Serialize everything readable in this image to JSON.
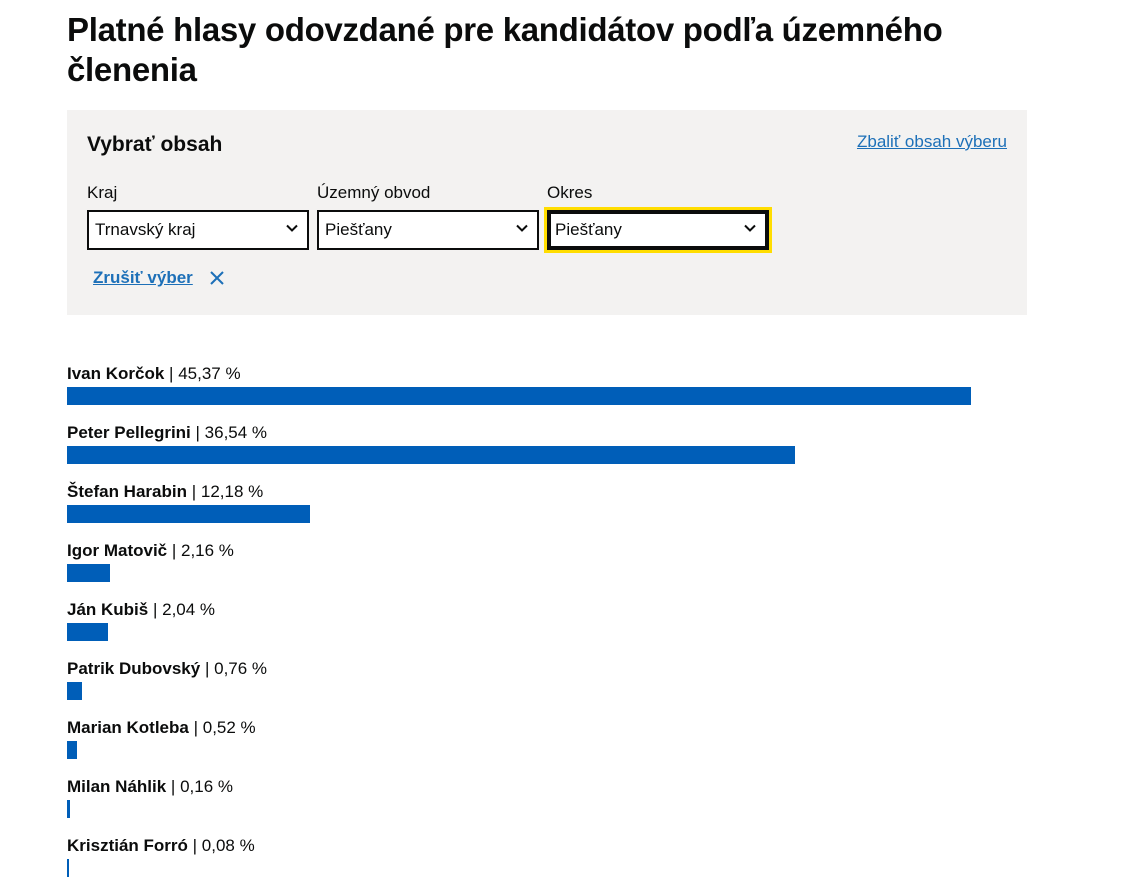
{
  "page": {
    "title": "Platné hlasy odovzdané pre kandidátov podľa územného členenia"
  },
  "filter": {
    "heading": "Vybrať obsah",
    "collapse_label": "Zbaliť obsah výberu",
    "fields": [
      {
        "label": "Kraj",
        "value": "Trnavský kraj"
      },
      {
        "label": "Územný obvod",
        "value": "Piešťany"
      },
      {
        "label": "Okres",
        "value": "Piešťany"
      }
    ],
    "reset_label": "Zrušiť výber"
  },
  "colors": {
    "bar": "#005eb8",
    "link": "#1d70b8",
    "focus": "#ffdd00",
    "panel_bg": "#f3f2f1"
  },
  "icons": {
    "dropdown": "chevron-down-icon",
    "reset": "close-icon"
  },
  "scale_max_percent": 48.2,
  "results": [
    {
      "name": "Ivan Korčok",
      "percent_label": "45,37 %",
      "value": 45.37
    },
    {
      "name": "Peter Pellegrini",
      "percent_label": "36,54 %",
      "value": 36.54
    },
    {
      "name": "Štefan Harabin",
      "percent_label": "12,18 %",
      "value": 12.18
    },
    {
      "name": "Igor Matovič",
      "percent_label": "2,16 %",
      "value": 2.16
    },
    {
      "name": "Ján Kubiš",
      "percent_label": "2,04 %",
      "value": 2.04
    },
    {
      "name": "Patrik Dubovský",
      "percent_label": "0,76 %",
      "value": 0.76
    },
    {
      "name": "Marian Kotleba",
      "percent_label": "0,52 %",
      "value": 0.52
    },
    {
      "name": "Milan Náhlik",
      "percent_label": "0,16 %",
      "value": 0.16
    },
    {
      "name": "Krisztián Forró",
      "percent_label": "0,08 %",
      "value": 0.08
    }
  ]
}
